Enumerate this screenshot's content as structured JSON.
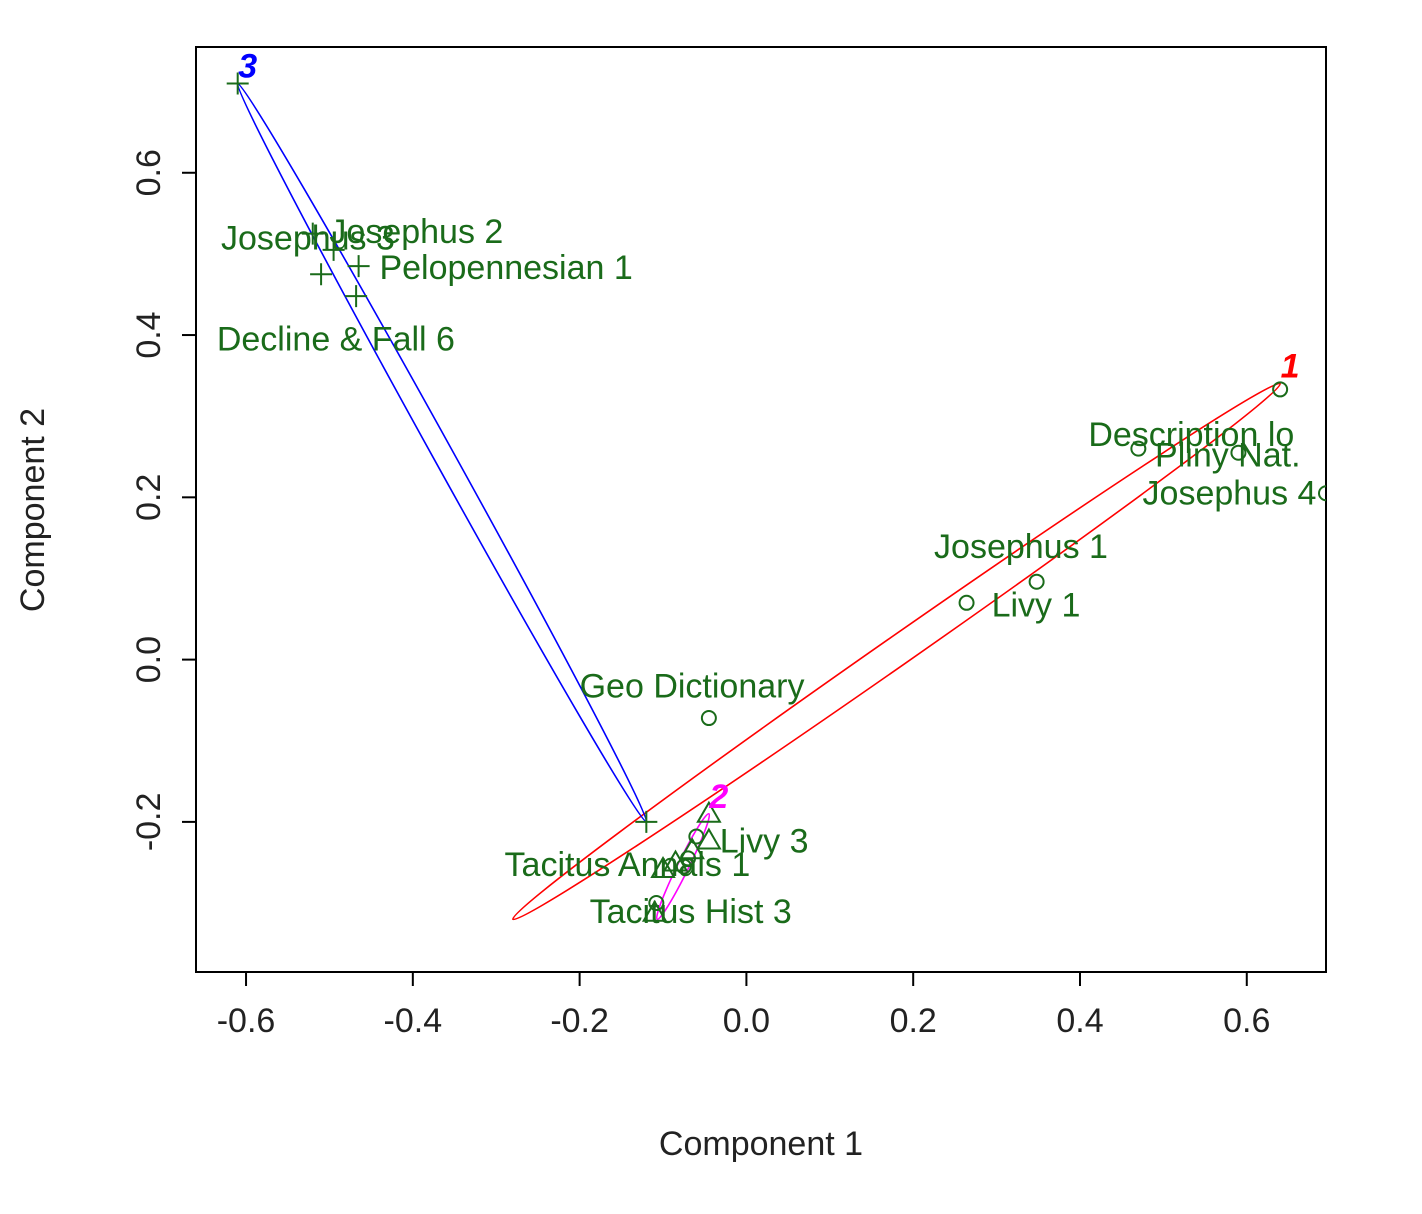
{
  "chart_data": {
    "type": "scatter",
    "title": "",
    "xlabel": "Component 1",
    "ylabel": "Component 2",
    "xlim": [
      -0.66,
      0.695
    ],
    "ylim": [
      -0.385,
      0.755
    ],
    "xticks": [
      -0.6,
      -0.4,
      -0.2,
      0.0,
      0.2,
      0.4,
      0.6
    ],
    "xtick_labels": [
      "-0.6",
      "-0.4",
      "-0.2",
      "0.0",
      "0.2",
      "0.4",
      "0.6"
    ],
    "yticks": [
      -0.2,
      0.0,
      0.2,
      0.4,
      0.6
    ],
    "ytick_labels": [
      "-0.2",
      "0.0",
      "0.2",
      "0.4",
      "0.6"
    ],
    "grid": false,
    "point_color": "#1a6b1a",
    "clusters": [
      {
        "id": "1",
        "color": "#ff0000",
        "marker": "circle",
        "center": [
          0.18,
          0.01
        ],
        "axis_end": [
          0.64,
          0.34
        ],
        "minor_end": [
          0.205,
          0.05
        ]
      },
      {
        "id": "2",
        "color": "#ff00ff",
        "marker": "triangle",
        "center": [
          -0.076,
          -0.255
        ],
        "axis_end": [
          -0.045,
          -0.19
        ],
        "minor_end": [
          -0.07,
          -0.258
        ]
      },
      {
        "id": "3",
        "color": "#0000ff",
        "marker": "plus",
        "center": [
          -0.365,
          0.255
        ],
        "axis_end": [
          -0.61,
          0.71
        ],
        "minor_end": [
          -0.355,
          0.262
        ]
      }
    ],
    "points": [
      {
        "x": -0.61,
        "y": 0.71,
        "cluster": "3",
        "marker": "plus",
        "label": ""
      },
      {
        "x": -0.52,
        "y": 0.525,
        "cluster": "3",
        "marker": "plus",
        "label": "Josephus 3",
        "label_x": -0.63,
        "label_y": 0.52
      },
      {
        "x": -0.465,
        "y": 0.485,
        "cluster": "3",
        "marker": "plus",
        "label": "Josephus 2",
        "label_x": -0.5,
        "label_y": 0.528
      },
      {
        "x": -0.51,
        "y": 0.475,
        "cluster": "3",
        "marker": "plus",
        "label": "",
        "label_x": null,
        "label_y": null
      },
      {
        "x": -0.468,
        "y": 0.448,
        "cluster": "3",
        "marker": "plus",
        "label": "Pelopennesian 1",
        "label_x": -0.44,
        "label_y": 0.484
      },
      {
        "x": -0.495,
        "y": 0.505,
        "cluster": "3",
        "marker": "plus",
        "label": "Decline & Fall 6",
        "label_x": -0.635,
        "label_y": 0.396
      },
      {
        "x": -0.12,
        "y": -0.2,
        "cluster": "3",
        "marker": "plus",
        "label": ""
      },
      {
        "x": 0.64,
        "y": 0.333,
        "cluster": "1",
        "marker": "circle",
        "label": ""
      },
      {
        "x": 0.47,
        "y": 0.26,
        "cluster": "1",
        "marker": "circle",
        "label": "Description lo",
        "label_x": 0.41,
        "label_y": 0.278
      },
      {
        "x": 0.59,
        "y": 0.255,
        "cluster": "1",
        "marker": "circle",
        "label": "Pliny Nat.",
        "label_x": 0.49,
        "label_y": 0.253
      },
      {
        "x": 0.695,
        "y": 0.205,
        "cluster": "1",
        "marker": "circle",
        "label": "Josephus 4",
        "label_x": 0.475,
        "label_y": 0.206
      },
      {
        "x": 0.348,
        "y": 0.096,
        "cluster": "1",
        "marker": "circle",
        "label": "Josephus 1",
        "label_x": 0.225,
        "label_y": 0.14
      },
      {
        "x": 0.264,
        "y": 0.07,
        "cluster": "1",
        "marker": "circle",
        "label": "Livy 1",
        "label_x": 0.294,
        "label_y": 0.068
      },
      {
        "x": -0.045,
        "y": -0.072,
        "cluster": "1",
        "marker": "circle",
        "label": "Geo Dictionary",
        "label_x": -0.2,
        "label_y": -0.032
      },
      {
        "x": -0.045,
        "y": -0.19,
        "cluster": "2",
        "marker": "triangle",
        "label": ""
      },
      {
        "x": -0.045,
        "y": -0.223,
        "cluster": "2",
        "marker": "triangle",
        "label": "Livy 3",
        "label_x": -0.032,
        "label_y": -0.223
      },
      {
        "x": -0.06,
        "y": -0.218,
        "cluster": "2",
        "marker": "circle",
        "label": ""
      },
      {
        "x": -0.065,
        "y": -0.235,
        "cluster": "2",
        "marker": "triangle",
        "label": ""
      },
      {
        "x": -0.07,
        "y": -0.245,
        "cluster": "2",
        "marker": "circle",
        "label": ""
      },
      {
        "x": -0.085,
        "y": -0.25,
        "cluster": "2",
        "marker": "triangle",
        "label": "Tacitus Annals 1",
        "label_x": -0.29,
        "label_y": -0.252
      },
      {
        "x": -0.1,
        "y": -0.258,
        "cluster": "2",
        "marker": "triangle",
        "label": ""
      },
      {
        "x": -0.075,
        "y": -0.255,
        "cluster": "2",
        "marker": "circle",
        "label": ""
      },
      {
        "x": -0.108,
        "y": -0.3,
        "cluster": "2",
        "marker": "circle",
        "label": ""
      },
      {
        "x": -0.11,
        "y": -0.312,
        "cluster": "2",
        "marker": "triangle",
        "label": "Tacitus Hist 3",
        "label_x": -0.188,
        "label_y": -0.31
      }
    ]
  }
}
